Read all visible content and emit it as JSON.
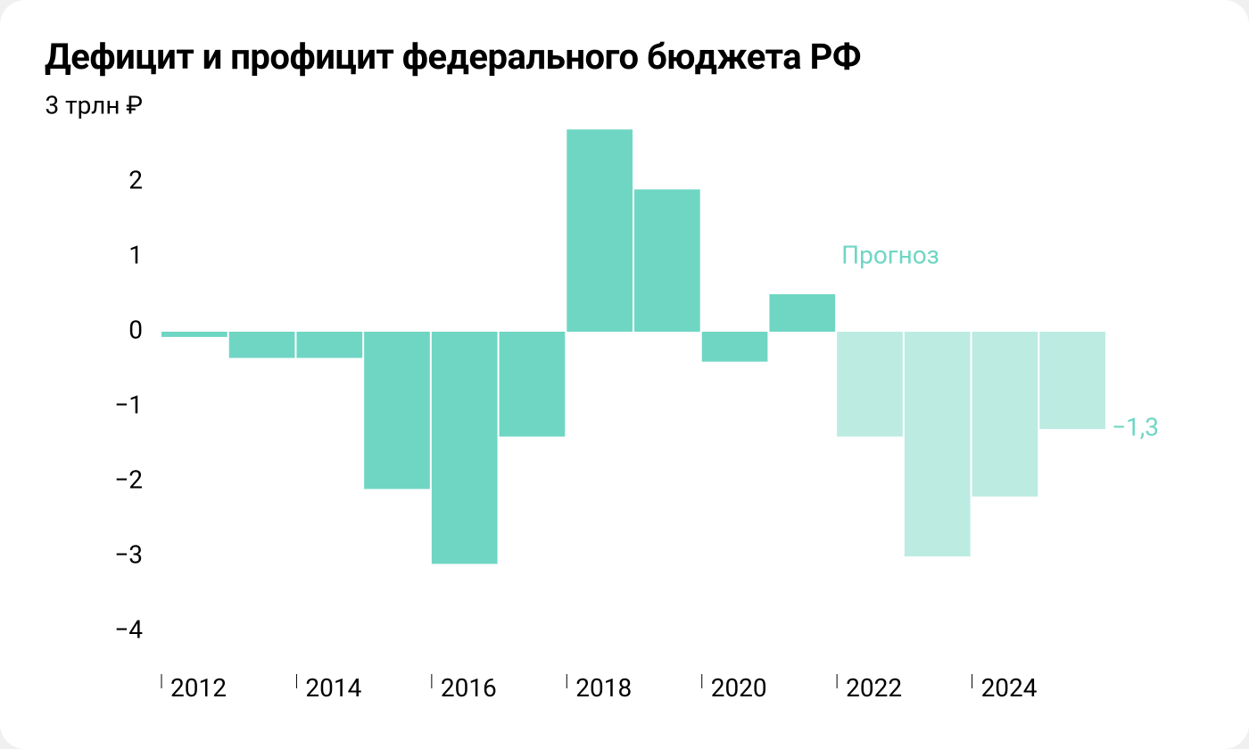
{
  "chart": {
    "type": "bar",
    "title": "Дефицит и профицит федерального бюджета РФ",
    "background_color": "#ffffff",
    "border_radius": 28,
    "title_fontsize": 40,
    "title_color": "#000000",
    "tick_fontsize": 28,
    "tick_color": "#000000",
    "annotation_color": "#6fd6c4",
    "ylim": [
      -4.5,
      3
    ],
    "ytick_step": 1,
    "yticks": [
      {
        "v": 3,
        "label": "3 трлн ₽"
      },
      {
        "v": 2,
        "label": "2"
      },
      {
        "v": 1,
        "label": "1"
      },
      {
        "v": 0,
        "label": "0"
      },
      {
        "v": -1,
        "label": "−1"
      },
      {
        "v": -2,
        "label": "−2"
      },
      {
        "v": -3,
        "label": "−3"
      },
      {
        "v": -4,
        "label": "−4"
      }
    ],
    "xtick_labels": [
      "2012",
      "2014",
      "2016",
      "2018",
      "2020",
      "2022",
      "2024"
    ],
    "xtick_line_color": "#000000",
    "xtick_line_width": 1,
    "xtick_line_height": 8,
    "bar_gap": 2,
    "actual_color": "#6fd6c4",
    "forecast_color": "#bcebe2",
    "forecast_label": "Прогноз",
    "last_value_label": "−1,3",
    "data": [
      {
        "year": 2012,
        "value": -0.07,
        "forecast": false
      },
      {
        "year": 2013,
        "value": -0.35,
        "forecast": false
      },
      {
        "year": 2014,
        "value": -0.35,
        "forecast": false
      },
      {
        "year": 2015,
        "value": -2.1,
        "forecast": false
      },
      {
        "year": 2016,
        "value": -3.1,
        "forecast": false
      },
      {
        "year": 2017,
        "value": -1.4,
        "forecast": false
      },
      {
        "year": 2018,
        "value": 2.7,
        "forecast": false
      },
      {
        "year": 2019,
        "value": 1.9,
        "forecast": false
      },
      {
        "year": 2020,
        "value": -0.4,
        "forecast": false
      },
      {
        "year": 2021,
        "value": 0.5,
        "forecast": false
      },
      {
        "year": 2022,
        "value": -1.4,
        "forecast": true
      },
      {
        "year": 2023,
        "value": -3.0,
        "forecast": true
      },
      {
        "year": 2024,
        "value": -2.2,
        "forecast": true
      },
      {
        "year": 2025,
        "value": -1.3,
        "forecast": true
      }
    ]
  }
}
